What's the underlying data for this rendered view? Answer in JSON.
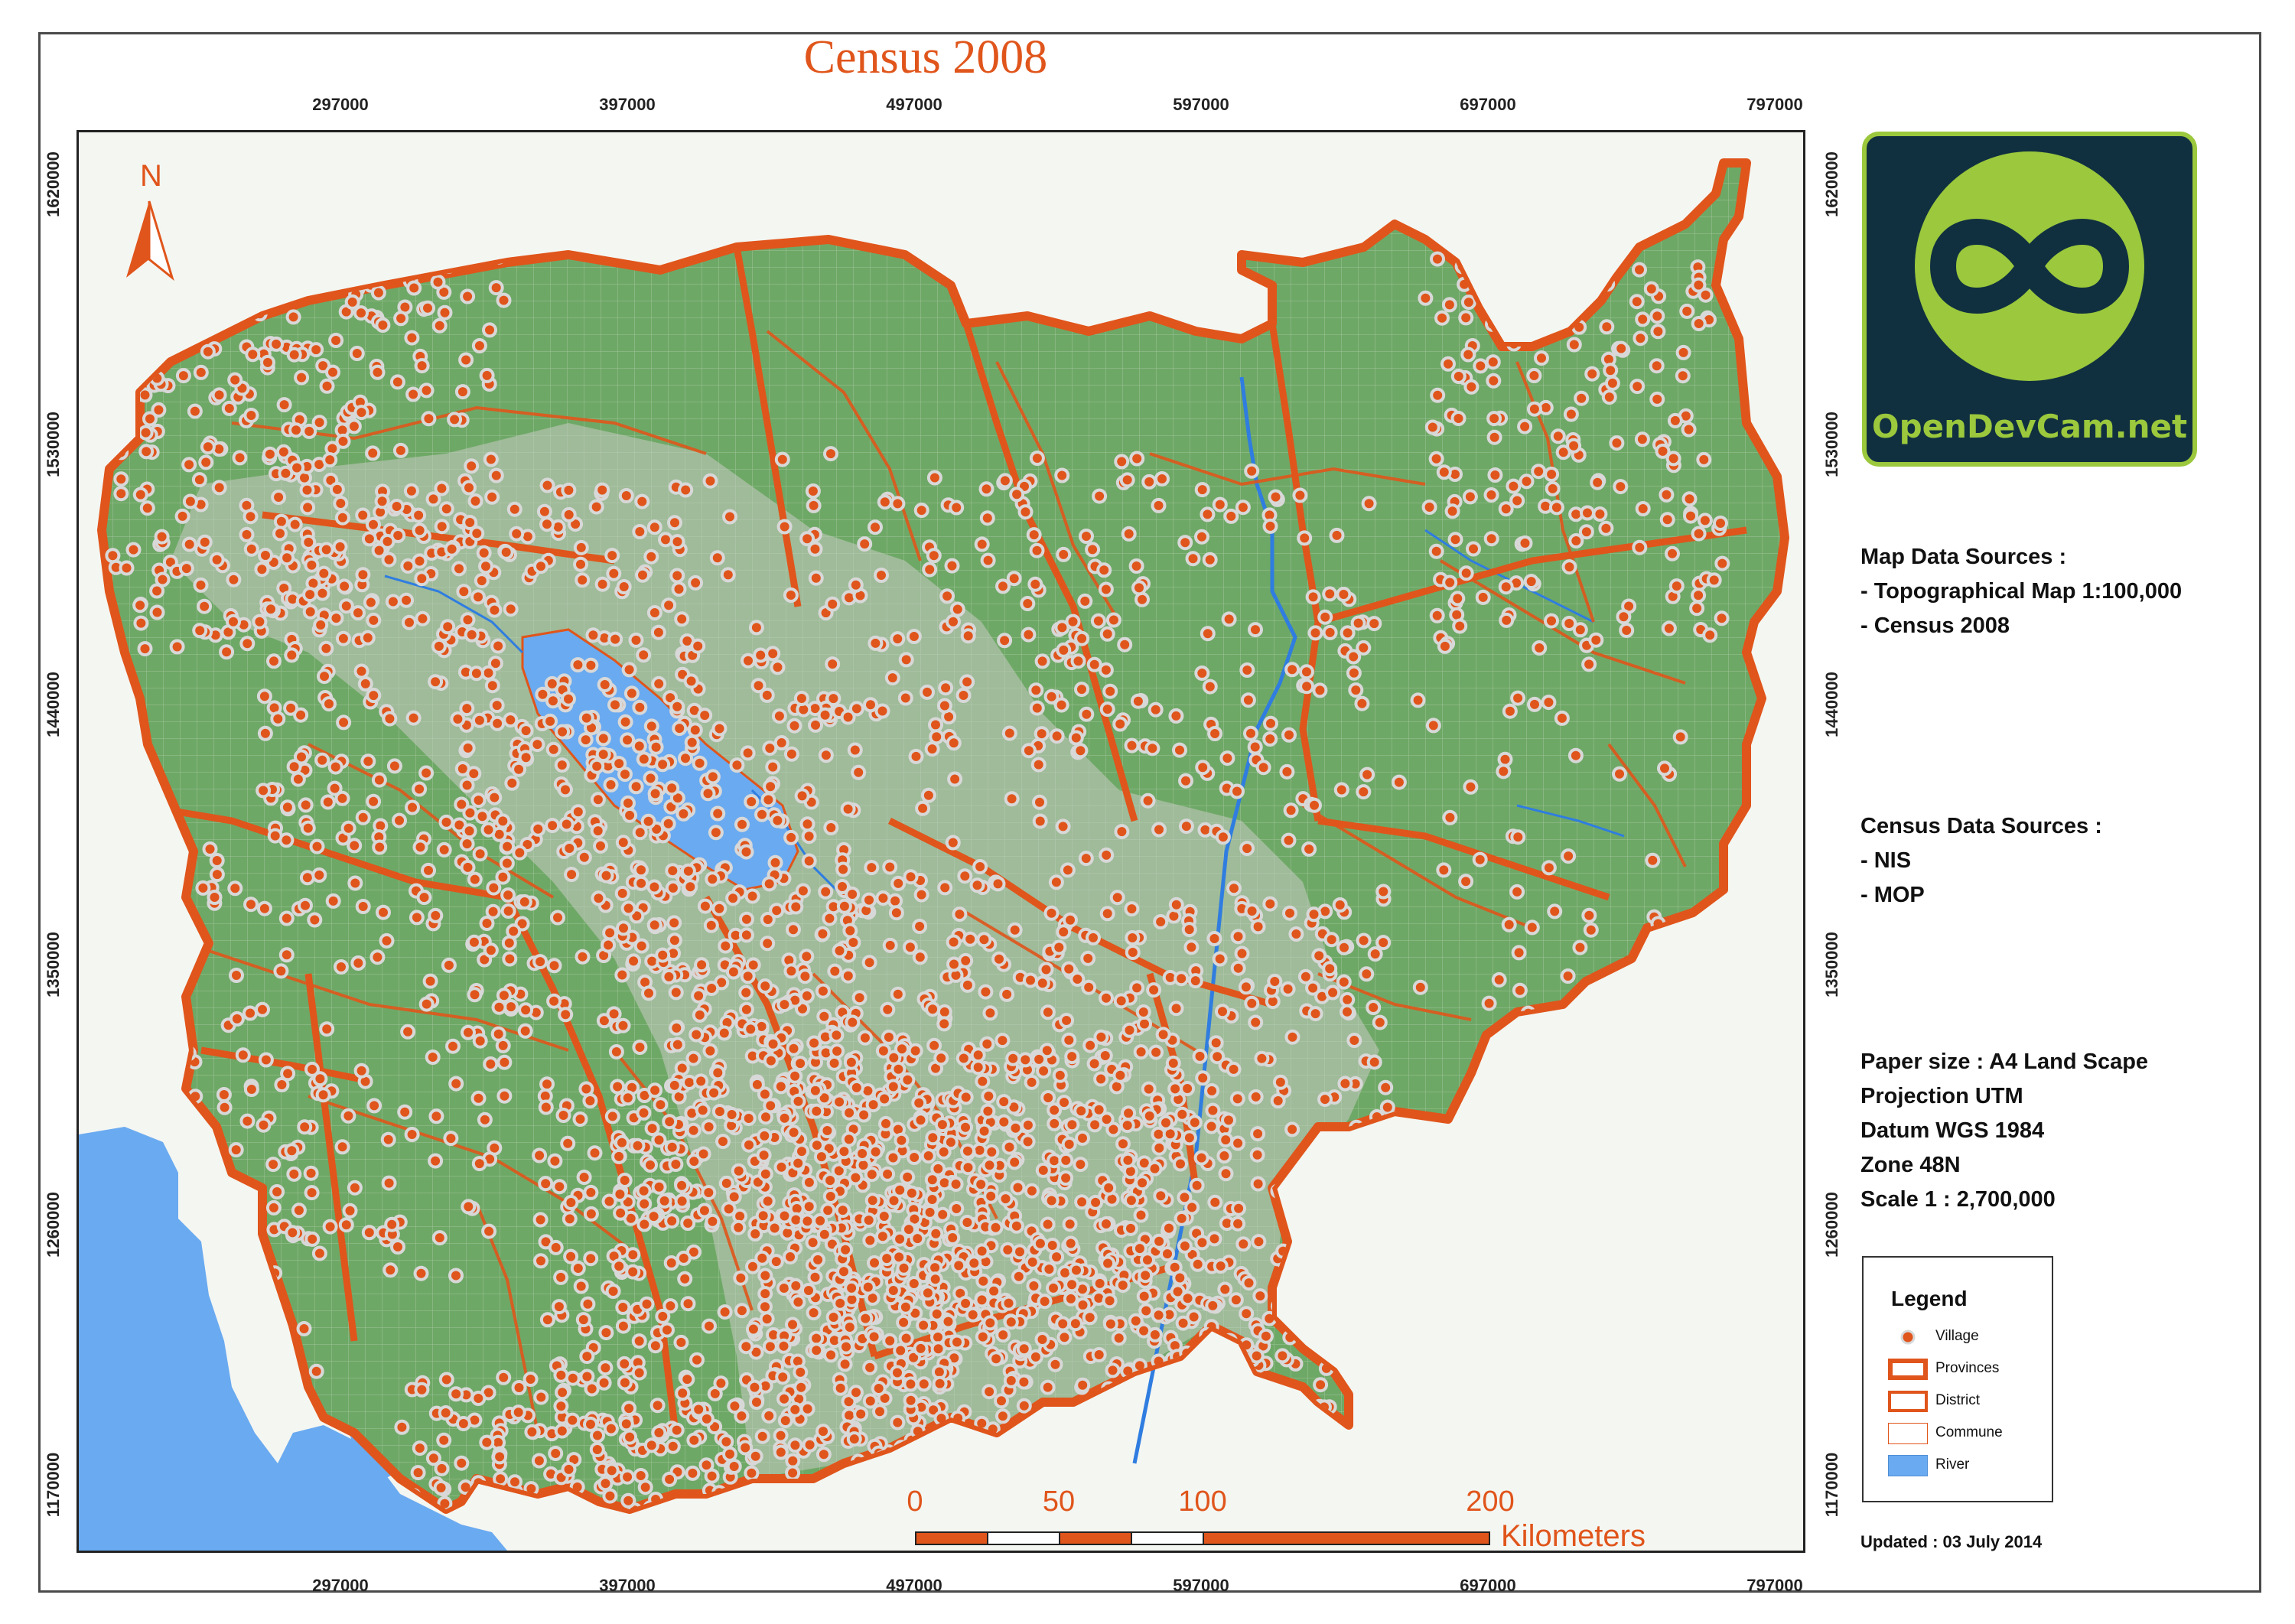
{
  "map": {
    "title": "Census 2008",
    "north_label": "N",
    "x_ticks": [
      "297000",
      "397000",
      "497000",
      "597000",
      "697000",
      "797000"
    ],
    "y_ticks": [
      "1620000",
      "1530000",
      "1440000",
      "1350000",
      "1260000",
      "1170000"
    ],
    "colors": {
      "accent": "#e0551b",
      "vegetation": "#6ea866",
      "water": "#6aaaf0",
      "village_fill": "#e0551b",
      "village_ring": "#d6d6d6"
    }
  },
  "logo": {
    "text": "OpenDevCam.net",
    "bg": "#103040",
    "accent": "#9bc83c"
  },
  "info": {
    "map_sources": [
      "Map Data Sources :",
      "- Topographical Map 1:100,000",
      "- Census 2008"
    ],
    "census_sources": [
      "Census Data Sources :",
      "- NIS",
      "- MOP"
    ],
    "specs": [
      "Paper size : A4 Land Scape",
      "Projection UTM",
      "Datum WGS 1984",
      "Zone 48N",
      "Scale  1 : 2,700,000"
    ]
  },
  "legend": {
    "title": "Legend",
    "items": [
      {
        "label": "Village",
        "icon": "village-dot-icon"
      },
      {
        "label": "Provinces",
        "icon": "province-boundary-icon"
      },
      {
        "label": "District",
        "icon": "district-boundary-icon"
      },
      {
        "label": "Commune",
        "icon": "commune-boundary-icon"
      },
      {
        "label": "River",
        "icon": "river-icon"
      }
    ]
  },
  "scalebar": {
    "labels": [
      "0",
      "50",
      "100",
      "200"
    ],
    "unit": "Kilometers"
  },
  "updated": "Updated : 03 July 2014"
}
